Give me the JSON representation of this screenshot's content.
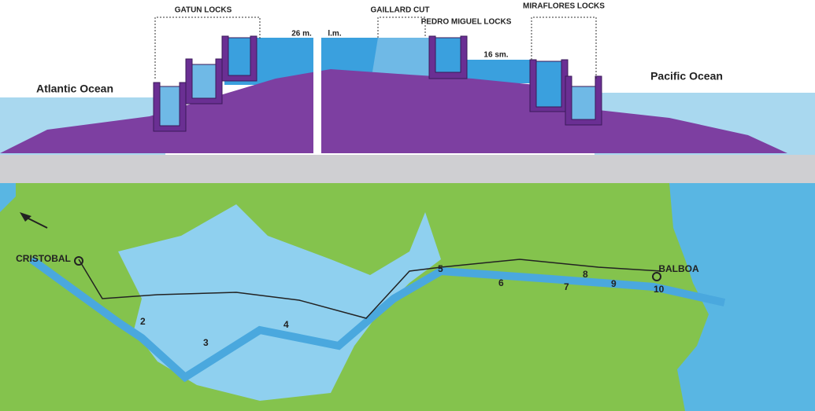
{
  "profile": {
    "locks": [
      "GATUN LOCKS",
      "GAILLARD CUT",
      "PEDRO MIGUEL LOCKS",
      "MIRAFLORES LOCKS"
    ],
    "levels": [
      "26 m.",
      "l.m.",
      "16 sm."
    ],
    "oceans": [
      "Atlantic Ocean",
      "Pacific Ocean"
    ]
  },
  "map": {
    "ports": [
      "CRISTOBAL",
      "BALBOA"
    ],
    "points": [
      "2",
      "3",
      "4",
      "5",
      "6",
      "7",
      "8",
      "9",
      "10"
    ]
  }
}
